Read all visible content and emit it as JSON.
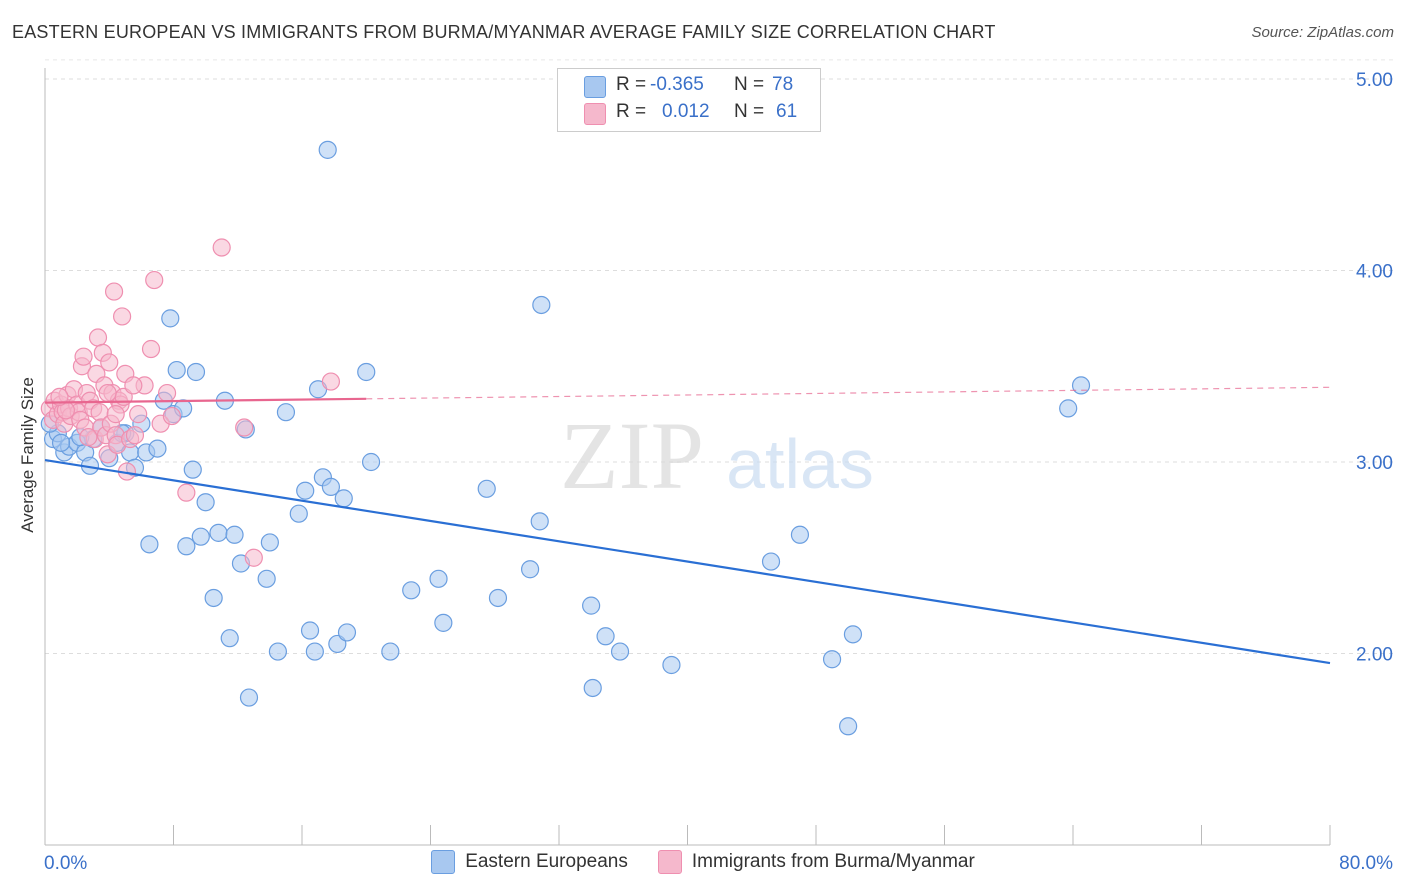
{
  "title": "EASTERN EUROPEAN VS IMMIGRANTS FROM BURMA/MYANMAR AVERAGE FAMILY SIZE CORRELATION CHART",
  "source": "Source: ZipAtlas.com",
  "watermark": {
    "zip": "ZIP",
    "atlas": "atlas"
  },
  "legend_top": {
    "rows": [
      {
        "r_label": "R =",
        "r_value": "-0.365",
        "n_label": "N =",
        "n_value": "78",
        "color": "#a8c8f0"
      },
      {
        "r_label": "R =",
        "r_value": "0.012",
        "n_label": "N =",
        "n_value": "61",
        "color": "#f5b8cc"
      }
    ]
  },
  "chart_data": {
    "type": "scatter",
    "title": "EASTERN EUROPEAN VS IMMIGRANTS FROM BURMA/MYANMAR AVERAGE FAMILY SIZE CORRELATION CHART",
    "xlabel": "",
    "ylabel": "Average Family Size",
    "xlim": [
      0,
      80
    ],
    "ylim": [
      1.0,
      5.2
    ],
    "x_tick_labels": [
      "0.0%",
      "80.0%"
    ],
    "y_ticks": [
      2.0,
      3.0,
      4.0,
      5.0
    ],
    "y_tick_labels": [
      "2.00",
      "3.00",
      "4.00",
      "5.00"
    ],
    "grid": true,
    "legend": "bottom",
    "series": [
      {
        "name": "Eastern Europeans",
        "color": "#6a9ee0",
        "fill": "#a8c8f0",
        "line_color": "#2a6fd4",
        "trend": {
          "x": [
            0,
            80
          ],
          "y": [
            3.01,
            1.95
          ],
          "dashed_from": null
        },
        "points": [
          [
            0.5,
            3.12
          ],
          [
            0.8,
            3.15
          ],
          [
            1.2,
            3.05
          ],
          [
            1.5,
            3.08
          ],
          [
            2.0,
            3.1
          ],
          [
            2.5,
            3.05
          ],
          [
            2.8,
            2.98
          ],
          [
            3.0,
            3.12
          ],
          [
            3.5,
            3.18
          ],
          [
            4.0,
            3.02
          ],
          [
            4.5,
            3.1
          ],
          [
            5.0,
            3.15
          ],
          [
            5.3,
            3.05
          ],
          [
            5.6,
            2.97
          ],
          [
            6.0,
            3.2
          ],
          [
            6.3,
            3.05
          ],
          [
            6.5,
            2.57
          ],
          [
            7.0,
            3.07
          ],
          [
            7.4,
            3.32
          ],
          [
            7.8,
            3.75
          ],
          [
            8.0,
            3.25
          ],
          [
            8.2,
            3.48
          ],
          [
            8.6,
            3.28
          ],
          [
            8.8,
            2.56
          ],
          [
            9.2,
            2.96
          ],
          [
            9.4,
            3.47
          ],
          [
            9.7,
            2.61
          ],
          [
            10.0,
            2.79
          ],
          [
            10.5,
            2.29
          ],
          [
            10.8,
            2.63
          ],
          [
            11.2,
            3.32
          ],
          [
            11.5,
            2.08
          ],
          [
            11.8,
            2.62
          ],
          [
            12.2,
            2.47
          ],
          [
            12.5,
            3.17
          ],
          [
            12.7,
            1.77
          ],
          [
            13.8,
            2.39
          ],
          [
            14.0,
            2.58
          ],
          [
            14.5,
            2.01
          ],
          [
            15.0,
            3.26
          ],
          [
            15.8,
            2.73
          ],
          [
            16.2,
            2.85
          ],
          [
            16.5,
            2.12
          ],
          [
            16.8,
            2.01
          ],
          [
            17.0,
            3.38
          ],
          [
            17.3,
            2.92
          ],
          [
            17.6,
            4.63
          ],
          [
            17.8,
            2.87
          ],
          [
            18.2,
            2.05
          ],
          [
            18.6,
            2.81
          ],
          [
            18.8,
            2.11
          ],
          [
            20.0,
            3.47
          ],
          [
            20.3,
            3.0
          ],
          [
            21.5,
            2.01
          ],
          [
            22.8,
            2.33
          ],
          [
            24.5,
            2.39
          ],
          [
            24.8,
            2.16
          ],
          [
            27.5,
            2.86
          ],
          [
            28.2,
            2.29
          ],
          [
            30.2,
            2.44
          ],
          [
            30.8,
            2.69
          ],
          [
            30.9,
            3.82
          ],
          [
            34.0,
            2.25
          ],
          [
            34.1,
            1.82
          ],
          [
            34.9,
            2.09
          ],
          [
            35.8,
            2.01
          ],
          [
            39.0,
            1.94
          ],
          [
            45.2,
            2.48
          ],
          [
            47.0,
            2.62
          ],
          [
            49.0,
            1.97
          ],
          [
            50.0,
            1.62
          ],
          [
            50.3,
            2.1
          ],
          [
            63.7,
            3.28
          ],
          [
            64.5,
            3.4
          ],
          [
            0.3,
            3.2
          ],
          [
            1.0,
            3.1
          ],
          [
            2.2,
            3.13
          ],
          [
            4.8,
            3.15
          ]
        ]
      },
      {
        "name": "Immigrants from Burma/Myanmar",
        "color": "#ef8fb0",
        "fill": "#f5b8cc",
        "line_color": "#e8668f",
        "trend": {
          "x": [
            0,
            80
          ],
          "y": [
            3.31,
            3.39
          ],
          "dashed_from": 20
        },
        "points": [
          [
            0.3,
            3.28
          ],
          [
            0.5,
            3.22
          ],
          [
            0.6,
            3.32
          ],
          [
            0.8,
            3.25
          ],
          [
            1.0,
            3.3
          ],
          [
            1.1,
            3.26
          ],
          [
            1.2,
            3.2
          ],
          [
            1.4,
            3.35
          ],
          [
            1.5,
            3.28
          ],
          [
            1.6,
            3.24
          ],
          [
            1.8,
            3.38
          ],
          [
            2.0,
            3.3
          ],
          [
            2.1,
            3.26
          ],
          [
            2.2,
            3.22
          ],
          [
            2.3,
            3.5
          ],
          [
            2.4,
            3.55
          ],
          [
            2.5,
            3.18
          ],
          [
            2.6,
            3.36
          ],
          [
            2.8,
            3.32
          ],
          [
            3.0,
            3.28
          ],
          [
            3.1,
            3.12
          ],
          [
            3.2,
            3.46
          ],
          [
            3.3,
            3.65
          ],
          [
            3.4,
            3.26
          ],
          [
            3.5,
            3.18
          ],
          [
            3.6,
            3.57
          ],
          [
            3.7,
            3.4
          ],
          [
            3.8,
            3.14
          ],
          [
            3.9,
            3.04
          ],
          [
            4.0,
            3.52
          ],
          [
            4.1,
            3.2
          ],
          [
            4.2,
            3.36
          ],
          [
            4.3,
            3.89
          ],
          [
            4.4,
            3.14
          ],
          [
            4.5,
            3.09
          ],
          [
            4.6,
            3.32
          ],
          [
            4.7,
            3.3
          ],
          [
            4.8,
            3.76
          ],
          [
            4.9,
            3.34
          ],
          [
            5.0,
            3.46
          ],
          [
            5.1,
            2.95
          ],
          [
            5.3,
            3.12
          ],
          [
            5.6,
            3.14
          ],
          [
            5.8,
            3.25
          ],
          [
            6.2,
            3.4
          ],
          [
            6.6,
            3.59
          ],
          [
            6.8,
            3.95
          ],
          [
            7.2,
            3.2
          ],
          [
            7.6,
            3.36
          ],
          [
            7.9,
            3.24
          ],
          [
            8.8,
            2.84
          ],
          [
            11.0,
            4.12
          ],
          [
            12.4,
            3.18
          ],
          [
            13.0,
            2.5
          ],
          [
            17.8,
            3.42
          ],
          [
            1.3,
            3.27
          ],
          [
            2.7,
            3.13
          ],
          [
            0.9,
            3.34
          ],
          [
            3.9,
            3.36
          ],
          [
            4.4,
            3.25
          ],
          [
            5.5,
            3.4
          ]
        ]
      }
    ]
  },
  "legend_bottom": [
    {
      "label": "Eastern Europeans",
      "color": "#a8c8f0",
      "border": "#6a9ee0"
    },
    {
      "label": "Immigrants from Burma/Myanmar",
      "color": "#f5b8cc",
      "border": "#ef8fb0"
    }
  ]
}
